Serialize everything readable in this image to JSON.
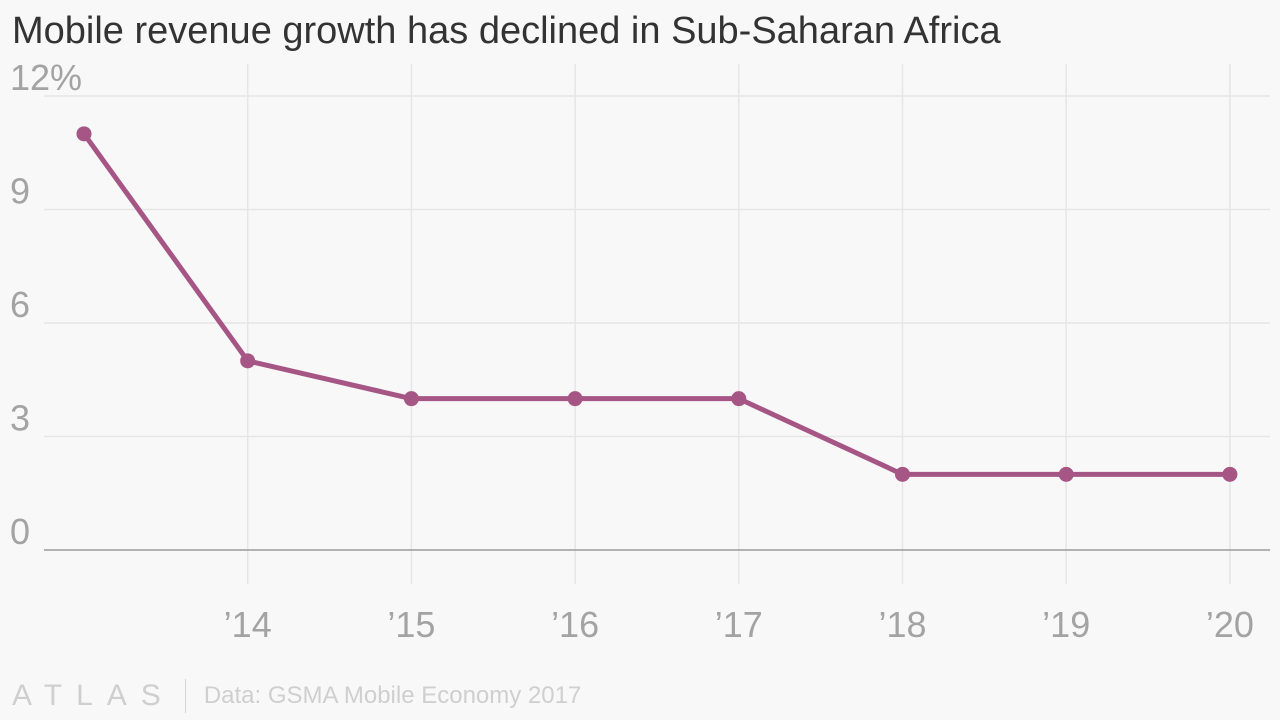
{
  "chart_data": {
    "type": "line",
    "title": "Mobile revenue growth has declined in Sub-Saharan Africa",
    "x": [
      "2013",
      "2014",
      "2015",
      "2016",
      "2017",
      "2018",
      "2019",
      "2020"
    ],
    "x_tick_labels": [
      "",
      "’14",
      "’15",
      "’16",
      "’17",
      "’18",
      "’19",
      "’20"
    ],
    "y_tick_values": [
      0,
      3,
      6,
      9,
      12
    ],
    "y_tick_labels": [
      "0",
      "3",
      "6",
      "9",
      "12%"
    ],
    "series": [
      {
        "values": [
          11,
          5,
          4,
          4,
          4,
          2,
          2,
          2
        ]
      }
    ],
    "ylim": [
      0,
      12
    ],
    "grid": true,
    "color": "#a65685"
  },
  "footer": {
    "logo": "ATLAS",
    "source": "Data: GSMA Mobile Economy 2017"
  }
}
